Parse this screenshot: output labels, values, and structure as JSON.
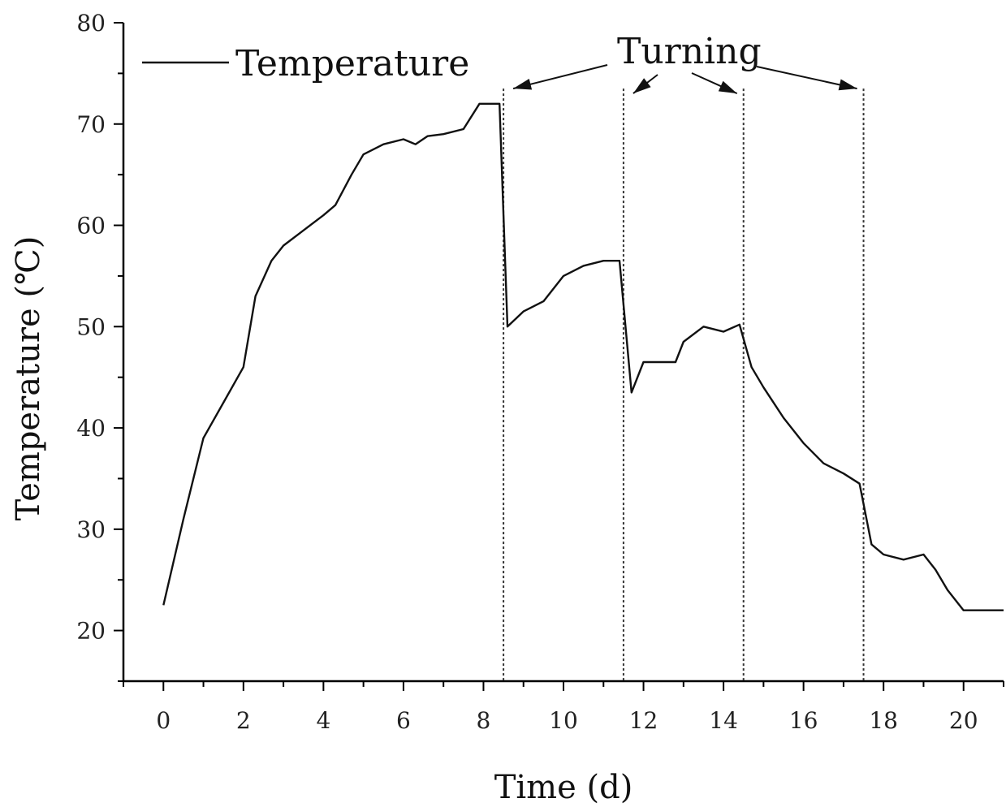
{
  "chart_data": {
    "type": "line",
    "xlabel": "Time (d)",
    "ylabel": "Temperature (℃)",
    "xlim": [
      -1,
      21
    ],
    "ylim": [
      15,
      80
    ],
    "xticks": [
      0,
      2,
      4,
      6,
      8,
      10,
      12,
      14,
      16,
      18,
      20
    ],
    "yticks": [
      20,
      30,
      40,
      50,
      60,
      70,
      80
    ],
    "legend": {
      "position": "top-left",
      "entries": [
        "Temperature"
      ]
    },
    "series": [
      {
        "name": "Temperature",
        "x": [
          0,
          0.5,
          1,
          1.5,
          2,
          2.3,
          2.7,
          3,
          3.5,
          4,
          4.3,
          4.7,
          5,
          5.5,
          6,
          6.3,
          6.6,
          7,
          7.5,
          7.9,
          8.2,
          8.4,
          8.6,
          9,
          9.5,
          10,
          10.5,
          11,
          11.4,
          11.7,
          12,
          12.4,
          12.8,
          13,
          13.5,
          14,
          14.4,
          14.7,
          15,
          15.5,
          16,
          16.5,
          17,
          17.4,
          17.7,
          18,
          18.5,
          19,
          19.3,
          19.6,
          20,
          20.5,
          21
        ],
        "y": [
          22.5,
          31,
          39,
          42.5,
          46,
          53,
          56.5,
          58,
          59.5,
          61,
          62,
          65,
          67,
          68,
          68.5,
          68,
          68.8,
          69,
          69.5,
          72,
          72,
          72,
          50,
          51.5,
          52.5,
          55,
          56,
          56.5,
          56.5,
          43.5,
          46.5,
          46.5,
          46.5,
          48.5,
          50,
          49.5,
          50.2,
          46,
          44,
          41,
          38.5,
          36.5,
          35.5,
          34.5,
          28.5,
          27.5,
          27,
          27.5,
          26,
          24,
          22,
          22,
          22
        ]
      }
    ],
    "vlines": [
      8.5,
      11.5,
      14.5,
      17.5
    ],
    "annotations": [
      {
        "text": "Turning",
        "arrows_to_x": [
          8.5,
          11.5,
          14.5,
          17.5
        ]
      }
    ]
  }
}
